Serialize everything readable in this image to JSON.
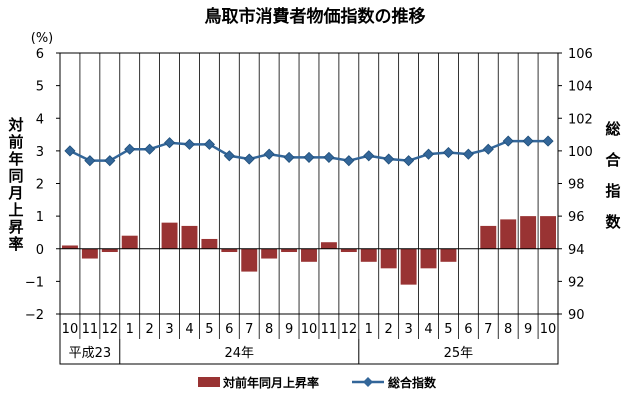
{
  "chart_data": {
    "type": "bar+line",
    "title": "鳥取市消費者物価指数の推移",
    "left_axis": {
      "unit_label": "(%)",
      "title": "対前年同月上昇率",
      "range": [
        -2,
        6
      ],
      "ticks": [
        "−2",
        "−1",
        "0",
        "1",
        "2",
        "3",
        "4",
        "5",
        "6"
      ]
    },
    "right_axis": {
      "title": "総合指数",
      "range": [
        90,
        106
      ],
      "ticks": [
        "90",
        "92",
        "94",
        "96",
        "98",
        "100",
        "102",
        "104",
        "106"
      ]
    },
    "categories": [
      "10",
      "11",
      "12",
      "1",
      "2",
      "3",
      "4",
      "5",
      "6",
      "7",
      "8",
      "9",
      "10",
      "11",
      "12",
      "1",
      "2",
      "3",
      "4",
      "5",
      "6",
      "7",
      "8",
      "9",
      "10"
    ],
    "year_groups": [
      {
        "label": "平成23",
        "count": 3
      },
      {
        "label": "24年",
        "count": 12
      },
      {
        "label": "25年",
        "count": 10
      }
    ],
    "series": [
      {
        "name": "対前年同月上昇率",
        "type": "bar",
        "axis": "left",
        "color": "#993333",
        "values": [
          0.1,
          -0.3,
          -0.1,
          0.4,
          0.0,
          0.8,
          0.7,
          0.3,
          -0.1,
          -0.7,
          -0.3,
          -0.1,
          -0.4,
          0.2,
          -0.1,
          -0.4,
          -0.6,
          -1.1,
          -0.6,
          -0.4,
          0.0,
          0.7,
          0.9,
          1.0,
          1.0
        ]
      },
      {
        "name": "総合指数",
        "type": "line",
        "axis": "right",
        "color": "#336699",
        "values": [
          100.0,
          99.4,
          99.4,
          100.1,
          100.1,
          100.5,
          100.4,
          100.4,
          99.7,
          99.5,
          99.8,
          99.6,
          99.6,
          99.6,
          99.4,
          99.7,
          99.5,
          99.4,
          99.8,
          99.9,
          99.8,
          100.1,
          100.6,
          100.6,
          100.6
        ]
      }
    ],
    "legend_position": "bottom",
    "grid": "vertical"
  }
}
